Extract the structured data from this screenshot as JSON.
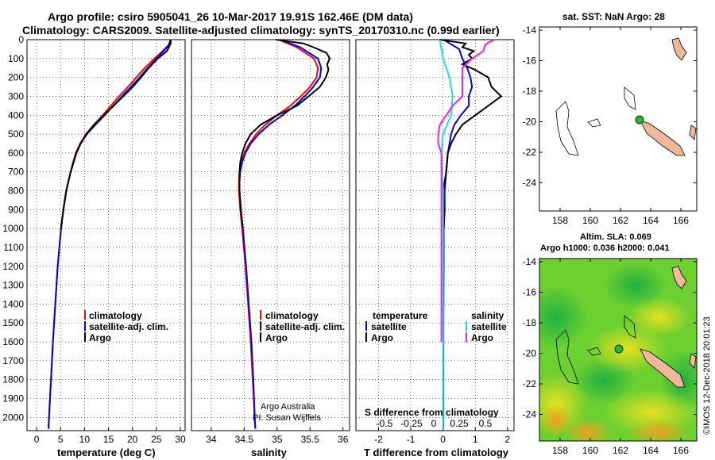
{
  "header": {
    "title_line1": "Argo profile: csiro 5905041_26 10-Mar-2017 19.91S 162.46E (DM data)",
    "title_line2": "Climatology: CARS2009. Satellite-adjusted climatology: synTS_20170310.nc (0.99d earlier)"
  },
  "map_sst": {
    "title": "sat. SST: NaN Argo: 28"
  },
  "map_sla": {
    "title1": "Altim. SLA: 0.069",
    "title2": "Argo h1000: 0.036 h2000: 0.041"
  },
  "credit": {
    "text": "©IMOS 12-Dec-2018 20:01:23"
  },
  "attribution": {
    "line1": "Argo Australia",
    "line2": "PI: Susan Wijffels"
  },
  "legend_profiles": {
    "climatology": "climatology",
    "satellite": "satellite-adj. clim.",
    "argo": "Argo"
  },
  "legend_diff": {
    "temp_head": "temperature",
    "sal_head": "salinity",
    "satellite": "satellite",
    "argo": "Argo",
    "s_caption": "S difference from climatology"
  },
  "colors": {
    "climatology": "#ff0000",
    "satellite": "#0000ee",
    "argo": "#000000",
    "sal_sat": "#22dddd",
    "sal_argo": "#ee22ee",
    "land": "#f0b898",
    "dot": "#22bb22"
  },
  "chart_data": [
    {
      "type": "line",
      "xlabel": "temperature (deg C)",
      "ylabel": "",
      "xlim": [
        -2,
        31
      ],
      "ylim": [
        2070,
        0
      ],
      "xticks": [
        0,
        5,
        10,
        15,
        20,
        25,
        30
      ],
      "yticks": [
        0,
        100,
        200,
        300,
        400,
        500,
        600,
        700,
        800,
        900,
        1000,
        1100,
        1200,
        1300,
        1400,
        1500,
        1600,
        1700,
        1800,
        1900,
        2000
      ],
      "series": [
        {
          "name": "climatology",
          "color": "#ff0000",
          "depth": [
            0,
            30,
            60,
            100,
            150,
            200,
            250,
            300,
            350,
            400,
            450,
            500,
            550,
            600,
            650,
            700,
            800,
            900,
            1000,
            1200,
            1400,
            1600,
            1800,
            2000,
            2060
          ],
          "values": [
            28,
            27.5,
            26.3,
            24.6,
            22.6,
            20.8,
            19.1,
            17.2,
            15.5,
            13.8,
            12.0,
            10.3,
            9.1,
            8.2,
            7.6,
            7.1,
            6.2,
            5.6,
            5.1,
            4.4,
            3.9,
            3.4,
            3.0,
            2.6,
            2.5
          ]
        },
        {
          "name": "satellite-adj. clim.",
          "color": "#0000ee",
          "depth": [
            0,
            30,
            60,
            100,
            150,
            200,
            250,
            300,
            350,
            400,
            450,
            500,
            550,
            600,
            650,
            700,
            800,
            900,
            1000,
            1200,
            1400,
            1600,
            1800,
            2000,
            2060
          ],
          "values": [
            28,
            27.6,
            26.5,
            25.0,
            23.2,
            21.5,
            19.7,
            17.8,
            16.0,
            14.2,
            12.3,
            10.5,
            9.2,
            8.3,
            7.7,
            7.1,
            6.2,
            5.6,
            5.1,
            4.4,
            3.9,
            3.4,
            3.0,
            2.6,
            2.5
          ]
        },
        {
          "name": "Argo",
          "color": "#000000",
          "depth": [
            0,
            20,
            60,
            100,
            150,
            200,
            250,
            300,
            350,
            400,
            450,
            500,
            550,
            600,
            650,
            700,
            800,
            900,
            1000
          ],
          "values": [
            28,
            28,
            27.2,
            25.3,
            23.4,
            21.8,
            20.1,
            18.1,
            16.1,
            14.0,
            12.0,
            10.4,
            9.2,
            8.3,
            7.7,
            7.1,
            6.2,
            5.6,
            5.1
          ]
        }
      ]
    },
    {
      "type": "line",
      "xlabel": "salinity",
      "xlim": [
        33.7,
        36.1
      ],
      "ylim": [
        2070,
        0
      ],
      "xticks": [
        34,
        34.5,
        35,
        35.5,
        36
      ],
      "series": [
        {
          "name": "climatology",
          "color": "#ff0000",
          "depth": [
            0,
            40,
            100,
            150,
            200,
            250,
            300,
            350,
            400,
            450,
            500,
            550,
            600,
            650,
            700,
            750,
            800,
            900,
            1000,
            1200,
            1400,
            1600,
            1800,
            2000,
            2060
          ],
          "values": [
            35.02,
            35.3,
            35.56,
            35.62,
            35.6,
            35.5,
            35.36,
            35.2,
            35.0,
            34.82,
            34.68,
            34.58,
            34.5,
            34.46,
            34.43,
            34.42,
            34.42,
            34.44,
            34.47,
            34.52,
            34.56,
            34.6,
            34.63,
            34.66,
            34.67
          ]
        },
        {
          "name": "satellite-adj. clim.",
          "color": "#0000ee",
          "depth": [
            0,
            40,
            100,
            150,
            200,
            250,
            300,
            350,
            400,
            450,
            500,
            550,
            600,
            650,
            700,
            750,
            800,
            900,
            1000,
            1200,
            1400,
            1600,
            1800,
            2000,
            2060
          ],
          "values": [
            35.05,
            35.35,
            35.62,
            35.67,
            35.65,
            35.55,
            35.42,
            35.27,
            35.08,
            34.88,
            34.72,
            34.6,
            34.52,
            34.47,
            34.44,
            34.43,
            34.43,
            34.45,
            34.48,
            34.53,
            34.57,
            34.61,
            34.64,
            34.66,
            34.67
          ]
        },
        {
          "name": "Argo",
          "color": "#000000",
          "depth": [
            0,
            20,
            40,
            70,
            100,
            130,
            160,
            200,
            250,
            300,
            350,
            400,
            450,
            500,
            550,
            600,
            650,
            700,
            750,
            800,
            900,
            1000
          ],
          "values": [
            34.98,
            35.4,
            35.55,
            35.75,
            35.8,
            35.76,
            35.78,
            35.74,
            35.65,
            35.48,
            35.3,
            35.0,
            34.75,
            34.6,
            34.52,
            34.47,
            34.44,
            34.43,
            34.43,
            34.43,
            34.45,
            34.48
          ]
        }
      ]
    },
    {
      "type": "line",
      "xlabel": "T difference from climatology",
      "xlim": [
        -2.7,
        2.2
      ],
      "ylim": [
        2070,
        0
      ],
      "xticks": [
        -2,
        -1,
        0,
        1,
        2
      ],
      "sal_ticks_label": [
        "-0.5",
        "-0.25",
        "0",
        "0.25",
        "0.5"
      ],
      "series": [
        {
          "name": "temperature satellite",
          "color": "#0000ee",
          "depth": [
            0,
            50,
            100,
            150,
            200,
            250,
            300,
            350,
            400,
            450,
            500,
            550,
            600,
            700,
            800,
            900,
            1000,
            1200,
            1500,
            2000,
            2060
          ],
          "values": [
            0.02,
            0.5,
            0.6,
            0.75,
            0.85,
            0.9,
            0.8,
            0.8,
            0.55,
            0.35,
            0.25,
            0.2,
            0.15,
            0.1,
            0.05,
            0.05,
            0.02,
            0.02,
            0.01,
            0.01,
            0.01
          ]
        },
        {
          "name": "temperature Argo",
          "color": "#000000",
          "depth": [
            0,
            20,
            40,
            60,
            80,
            100,
            130,
            160,
            200,
            250,
            300,
            350,
            400,
            450,
            500,
            550,
            600,
            700,
            800,
            900,
            1000
          ],
          "values": [
            -0.1,
            0.7,
            0.6,
            0.95,
            0.8,
            0.9,
            0.6,
            1.0,
            1.4,
            1.5,
            1.8,
            1.4,
            1.0,
            0.6,
            0.4,
            0.25,
            0.15,
            0.1,
            0.0,
            0.05,
            0.02
          ]
        },
        {
          "name": "salinity satellite",
          "color": "#22dddd",
          "depth": [
            0,
            50,
            100,
            200,
            300,
            400,
            500,
            600,
            800,
            1000,
            1200,
            1500,
            2000,
            2060
          ],
          "values": [
            -0.1,
            -0.05,
            0.0,
            0.2,
            0.3,
            0.25,
            0.0,
            -0.05,
            0.0,
            0.0,
            0.0,
            0.0,
            0.0,
            0.0
          ]
        },
        {
          "name": "salinity Argo",
          "color": "#ee22ee",
          "depth": [
            0,
            15,
            30,
            60,
            100,
            150,
            200,
            300,
            350,
            400,
            450,
            500,
            550,
            600,
            700,
            800,
            900,
            1000,
            1200,
            1500,
            1600
          ],
          "values": [
            1.6,
            1.4,
            1.3,
            1.25,
            0.9,
            0.6,
            0.6,
            0.6,
            0.3,
            0.1,
            -0.1,
            -0.15,
            -0.15,
            -0.05,
            -0.05,
            -0.05,
            -0.05,
            -0.05,
            -0.05,
            -0.05,
            -0.05
          ]
        }
      ]
    }
  ],
  "map_axes": {
    "lon_ticks": [
      "158",
      "160",
      "162",
      "164",
      "166"
    ],
    "lat_ticks": [
      "-14",
      "-16",
      "-18",
      "-20",
      "-22",
      "-24"
    ]
  },
  "y_axis_labels": [
    "0",
    "100",
    "200",
    "300",
    "400",
    "500",
    "600",
    "700",
    "800",
    "900",
    "1000",
    "1100",
    "1200",
    "1300",
    "1400",
    "1500",
    "1600",
    "1700",
    "1800",
    "1900",
    "2000"
  ]
}
